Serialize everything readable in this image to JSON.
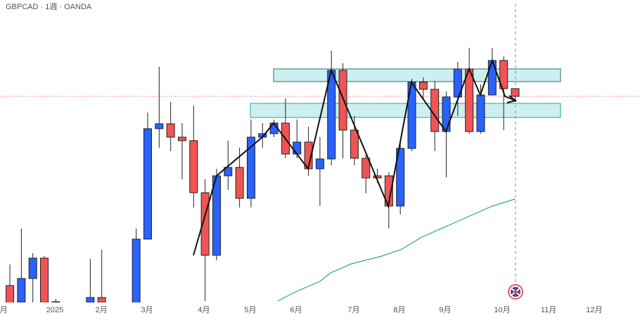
{
  "chart_data": {
    "type": "candlestick",
    "title": "GBPCAD · 1週 · OANDA",
    "xlim": [
      -0.86,
      54.87
    ],
    "ylim": [
      0,
      455
    ],
    "xticks": [
      {
        "value": -0.55,
        "label": "月"
      },
      {
        "value": 3.92,
        "label": "2025"
      },
      {
        "value": 7.96,
        "label": "2月"
      },
      {
        "value": 11.94,
        "label": "3月"
      },
      {
        "value": 16.9,
        "label": "4月"
      },
      {
        "value": 20.94,
        "label": "5月"
      },
      {
        "value": 24.92,
        "label": "6月"
      },
      {
        "value": 29.94,
        "label": "7月"
      },
      {
        "value": 33.92,
        "label": "8月"
      },
      {
        "value": 37.9,
        "label": "9月"
      },
      {
        "value": 42.87,
        "label": "10月"
      },
      {
        "value": 46.91,
        "label": "11月"
      },
      {
        "value": 50.89,
        "label": "12月"
      }
    ],
    "up_color": "#2962ff",
    "down_color": "#f05454",
    "candles": {
      "x": [
        0,
        1,
        2,
        3,
        4,
        7,
        8,
        11,
        12,
        13,
        14,
        15,
        16,
        17,
        18,
        19,
        20,
        21,
        22,
        23,
        24,
        25,
        26,
        27,
        28,
        29,
        30,
        31,
        32,
        33,
        34,
        35,
        36,
        37,
        38,
        39,
        40,
        41,
        42,
        43,
        44
      ],
      "open": [
        49,
        25,
        59,
        88,
        26,
        25,
        32,
        0,
        115,
        272,
        279,
        260,
        255,
        181,
        92,
        205,
        217,
        173,
        260,
        265,
        280,
        236,
        253,
        215,
        229,
        355,
        270,
        230,
        205,
        205,
        162,
        244,
        338,
        328,
        268,
        317,
        357,
        268,
        320,
        369,
        329
      ],
      "high": [
        79,
        130,
        95,
        91,
        30,
        87,
        100,
        130,
        295,
        360,
        310,
        280,
        305,
        200,
        215,
        255,
        245,
        285,
        280,
        285,
        315,
        285,
        275,
        260,
        383,
        365,
        290,
        235,
        215,
        210,
        255,
        343,
        345,
        340,
        325,
        367,
        387,
        335,
        387,
        375,
        329
      ],
      "low": [
        0,
        0,
        25,
        0,
        15,
        15,
        15,
        0,
        115,
        245,
        240,
        200,
        160,
        27,
        85,
        185,
        160,
        160,
        245,
        260,
        230,
        230,
        205,
        162,
        220,
        230,
        220,
        180,
        195,
        130,
        150,
        240,
        315,
        240,
        203,
        290,
        265,
        265,
        320,
        270,
        310
      ],
      "close": [
        0,
        59,
        88,
        0,
        25,
        32,
        25,
        115,
        272,
        279,
        260,
        255,
        181,
        92,
        205,
        217,
        173,
        260,
        265,
        280,
        236,
        253,
        215,
        229,
        355,
        270,
        230,
        202,
        202,
        162,
        244,
        338,
        328,
        268,
        317,
        357,
        268,
        320,
        369,
        329,
        318
      ]
    },
    "ma": {
      "color": "#26a69a",
      "x": [
        23.33,
        24.86,
        27.0,
        27.92,
        29.76,
        32.21,
        34.05,
        35.88,
        38.95,
        42.01,
        44.0
      ],
      "values": [
        27,
        40,
        55,
        67,
        80,
        90,
        100,
        118,
        140,
        162,
        172
      ]
    }
  }
}
